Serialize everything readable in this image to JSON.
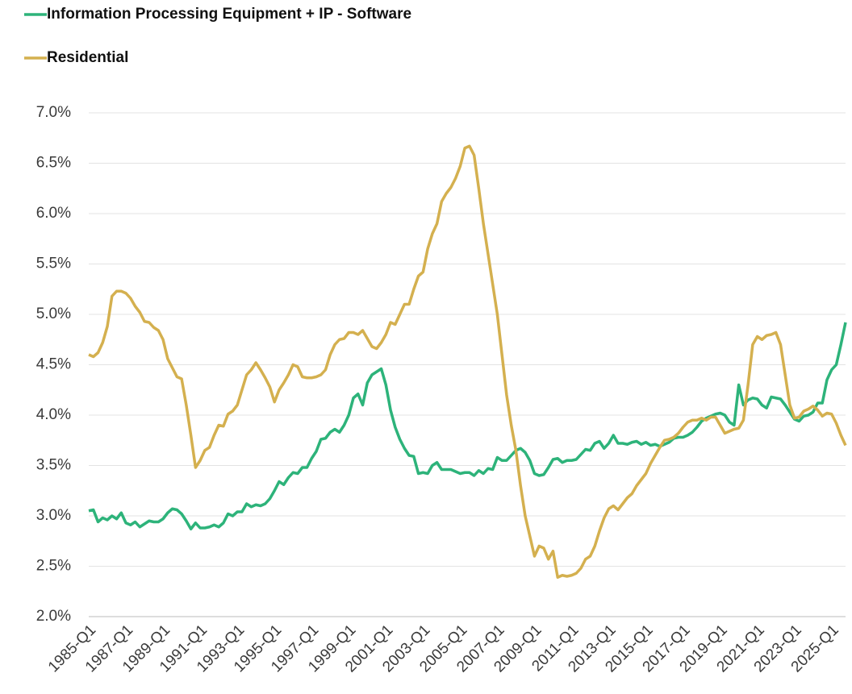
{
  "chart_data": {
    "type": "line",
    "categories": [
      "1985-Q1",
      null,
      null,
      null,
      null,
      null,
      null,
      null,
      "1987-Q1",
      null,
      null,
      null,
      null,
      null,
      null,
      null,
      "1989-Q1",
      null,
      null,
      null,
      null,
      null,
      null,
      null,
      "1991-Q1",
      null,
      null,
      null,
      null,
      null,
      null,
      null,
      "1993-Q1",
      null,
      null,
      null,
      null,
      null,
      null,
      null,
      "1995-Q1",
      null,
      null,
      null,
      null,
      null,
      null,
      null,
      "1997-Q1",
      null,
      null,
      null,
      null,
      null,
      null,
      null,
      "1999-Q1",
      null,
      null,
      null,
      null,
      null,
      null,
      null,
      "2001-Q1",
      null,
      null,
      null,
      null,
      null,
      null,
      null,
      "2003-Q1",
      null,
      null,
      null,
      null,
      null,
      null,
      null,
      "2005-Q1",
      null,
      null,
      null,
      null,
      null,
      null,
      null,
      "2007-Q1",
      null,
      null,
      null,
      null,
      null,
      null,
      null,
      "2009-Q1",
      null,
      null,
      null,
      null,
      null,
      null,
      null,
      "2011-Q1",
      null,
      null,
      null,
      null,
      null,
      null,
      null,
      "2013-Q1",
      null,
      null,
      null,
      null,
      null,
      null,
      null,
      "2015-Q1",
      null,
      null,
      null,
      null,
      null,
      null,
      null,
      "2017-Q1",
      null,
      null,
      null,
      null,
      null,
      null,
      null,
      "2019-Q1",
      null,
      null,
      null,
      null,
      null,
      null,
      null,
      "2021-Q1",
      null,
      null,
      null,
      null,
      null,
      null,
      null,
      "2023-Q1",
      null,
      null,
      null,
      null,
      null,
      null,
      null,
      "2025-Q1",
      null,
      null,
      null
    ],
    "series": [
      {
        "name": "Information Processing Equipment + IP - Software",
        "color": "#2db37a",
        "values": [
          3.05,
          3.06,
          2.94,
          2.98,
          2.96,
          3.0,
          2.97,
          3.03,
          2.93,
          2.91,
          2.94,
          2.89,
          2.92,
          2.95,
          2.94,
          2.94,
          2.97,
          3.03,
          3.07,
          3.06,
          3.02,
          2.95,
          2.87,
          2.93,
          2.88,
          2.88,
          2.89,
          2.91,
          2.89,
          2.93,
          3.02,
          3.0,
          3.04,
          3.04,
          3.12,
          3.09,
          3.11,
          3.1,
          3.12,
          3.17,
          3.25,
          3.34,
          3.31,
          3.38,
          3.43,
          3.42,
          3.48,
          3.48,
          3.57,
          3.64,
          3.76,
          3.77,
          3.83,
          3.86,
          3.83,
          3.9,
          4.0,
          4.17,
          4.21,
          4.1,
          4.32,
          4.4,
          4.43,
          4.46,
          4.3,
          4.05,
          3.88,
          3.76,
          3.67,
          3.6,
          3.59,
          3.42,
          3.43,
          3.42,
          3.5,
          3.53,
          3.46,
          3.46,
          3.46,
          3.44,
          3.42,
          3.43,
          3.43,
          3.4,
          3.45,
          3.42,
          3.47,
          3.46,
          3.58,
          3.55,
          3.55,
          3.6,
          3.65,
          3.67,
          3.63,
          3.55,
          3.42,
          3.4,
          3.41,
          3.48,
          3.56,
          3.57,
          3.53,
          3.55,
          3.55,
          3.56,
          3.61,
          3.66,
          3.65,
          3.72,
          3.74,
          3.67,
          3.72,
          3.8,
          3.72,
          3.72,
          3.71,
          3.73,
          3.74,
          3.71,
          3.73,
          3.7,
          3.71,
          3.69,
          3.71,
          3.73,
          3.77,
          3.78,
          3.78,
          3.8,
          3.83,
          3.88,
          3.94,
          3.97,
          3.99,
          4.01,
          4.02,
          4.0,
          3.93,
          3.9,
          4.3,
          4.1,
          4.15,
          4.17,
          4.16,
          4.1,
          4.07,
          4.18,
          4.17,
          4.16,
          4.1,
          4.03,
          3.96,
          3.94,
          3.99,
          4.0,
          4.03,
          4.12,
          4.12,
          4.35,
          4.45,
          4.5,
          4.7,
          4.92
        ]
      },
      {
        "name": "Residential",
        "color": "#d4b04f",
        "values": [
          4.6,
          4.58,
          4.62,
          4.72,
          4.88,
          5.18,
          5.23,
          5.23,
          5.21,
          5.16,
          5.08,
          5.02,
          4.93,
          4.92,
          4.87,
          4.84,
          4.75,
          4.56,
          4.47,
          4.38,
          4.36,
          4.1,
          3.8,
          3.48,
          3.55,
          3.65,
          3.68,
          3.8,
          3.9,
          3.89,
          4.01,
          4.04,
          4.1,
          4.25,
          4.4,
          4.45,
          4.52,
          4.45,
          4.37,
          4.28,
          4.13,
          4.25,
          4.32,
          4.4,
          4.5,
          4.48,
          4.38,
          4.37,
          4.37,
          4.38,
          4.4,
          4.45,
          4.6,
          4.7,
          4.75,
          4.76,
          4.82,
          4.82,
          4.8,
          4.84,
          4.76,
          4.68,
          4.66,
          4.72,
          4.8,
          4.92,
          4.9,
          5.0,
          5.1,
          5.1,
          5.25,
          5.38,
          5.42,
          5.65,
          5.8,
          5.9,
          6.12,
          6.2,
          6.26,
          6.35,
          6.47,
          6.65,
          6.67,
          6.58,
          6.25,
          5.9,
          5.6,
          5.3,
          5.0,
          4.6,
          4.2,
          3.9,
          3.65,
          3.3,
          3.0,
          2.8,
          2.6,
          2.7,
          2.68,
          2.57,
          2.65,
          2.39,
          2.41,
          2.4,
          2.41,
          2.43,
          2.48,
          2.57,
          2.6,
          2.7,
          2.85,
          2.98,
          3.07,
          3.1,
          3.06,
          3.12,
          3.18,
          3.22,
          3.3,
          3.36,
          3.42,
          3.52,
          3.6,
          3.68,
          3.75,
          3.76,
          3.78,
          3.82,
          3.88,
          3.93,
          3.95,
          3.95,
          3.97,
          3.95,
          3.98,
          3.98,
          3.9,
          3.82,
          3.84,
          3.86,
          3.87,
          3.95,
          4.3,
          4.7,
          4.78,
          4.75,
          4.79,
          4.8,
          4.82,
          4.7,
          4.4,
          4.1,
          3.97,
          3.98,
          4.04,
          4.06,
          4.09,
          4.05,
          3.99,
          4.02,
          4.01,
          3.92,
          3.8,
          3.7
        ]
      }
    ],
    "ylim": [
      2.0,
      7.0
    ],
    "yticks": [
      {
        "value": 2.0,
        "label": "2.0%"
      },
      {
        "value": 2.5,
        "label": "2.5%"
      },
      {
        "value": 3.0,
        "label": "3.0%"
      },
      {
        "value": 3.5,
        "label": "3.5%"
      },
      {
        "value": 4.0,
        "label": "4.0%"
      },
      {
        "value": 4.5,
        "label": "4.5%"
      },
      {
        "value": 5.0,
        "label": "5.0%"
      },
      {
        "value": 5.5,
        "label": "5.5%"
      },
      {
        "value": 6.0,
        "label": "6.0%"
      },
      {
        "value": 6.5,
        "label": "6.5%"
      },
      {
        "value": 7.0,
        "label": "7.0%"
      }
    ],
    "grid": true,
    "legend": "top-left"
  }
}
